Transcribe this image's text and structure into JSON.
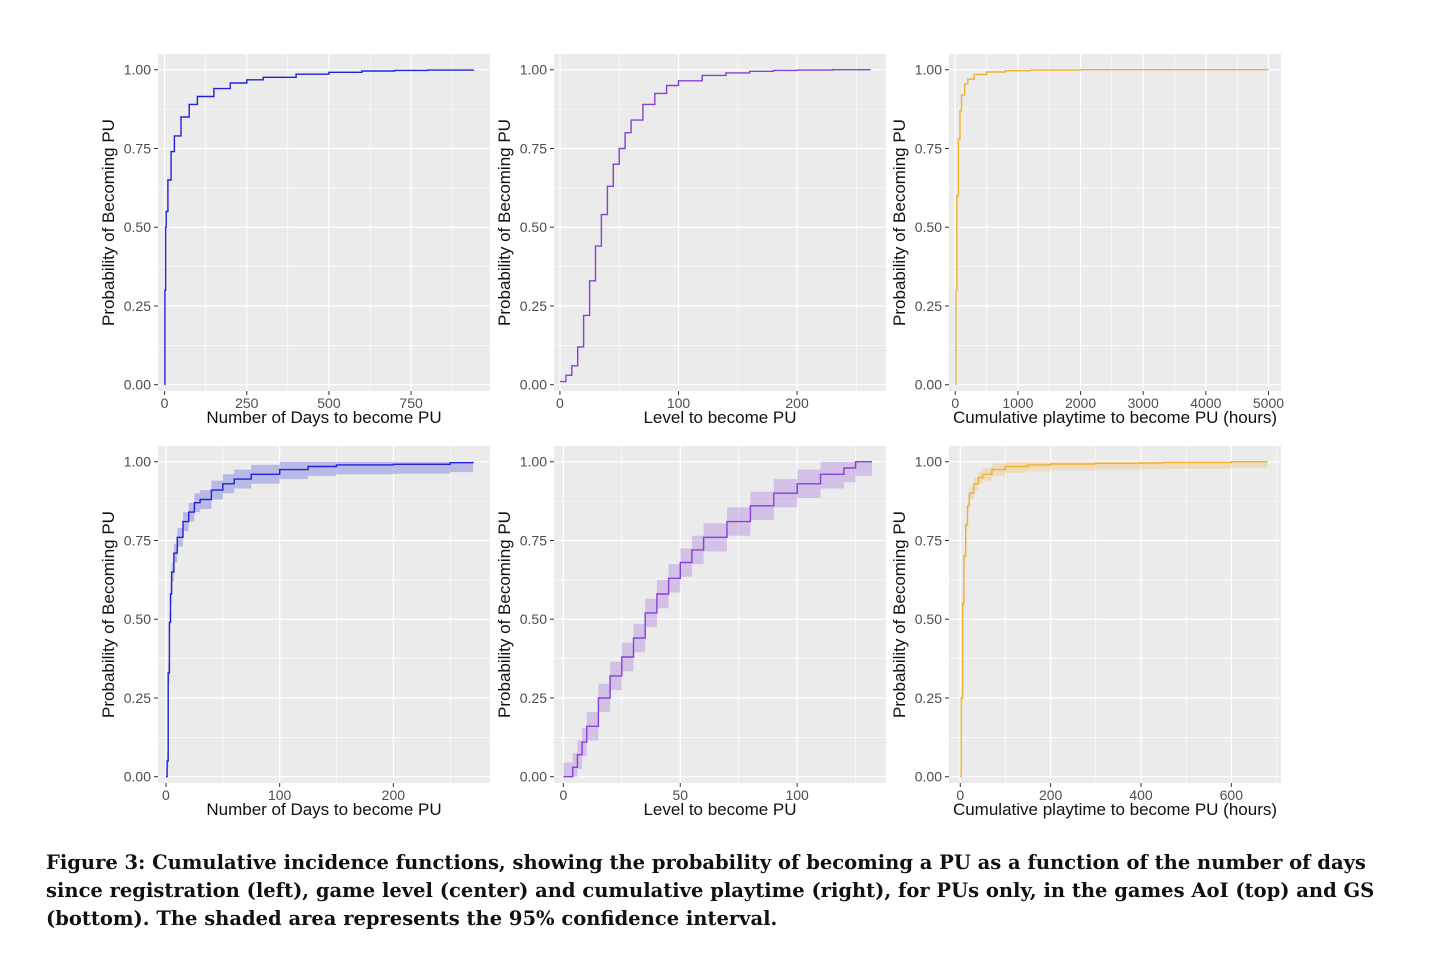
{
  "figure": {
    "caption": "Figure 3: Cumulative incidence functions, showing the probability of becoming a PU as a function of the number of days since registration (left), game level (center) and cumulative playtime (right), for PUs only, in the games AoI (top) and GS (bottom). The shaded area represents the 95% confidence interval."
  },
  "colors": {
    "panel_bg": "#ebebeb",
    "grid": "#ffffff",
    "blue": "#2222d8",
    "purple": "#8a3fd6",
    "orange": "#f0b030"
  },
  "chart_data": [
    {
      "type": "line",
      "color": "#2222d8",
      "xlabel": "Number of Days to become PU",
      "ylabel": "Probability of Becoming PU",
      "xlim": [
        -20,
        990
      ],
      "ylim": [
        -0.02,
        1.05
      ],
      "xticks": [
        0,
        250,
        500,
        750
      ],
      "yticks": [
        0,
        0.25,
        0.5,
        0.75,
        1
      ],
      "yticklabels": [
        "0.00",
        "0.25",
        "0.50",
        "0.75",
        "1.00"
      ],
      "ci": false,
      "x": [
        0,
        1,
        3,
        5,
        10,
        20,
        30,
        50,
        75,
        100,
        150,
        200,
        250,
        300,
        400,
        500,
        600,
        700,
        800,
        940
      ],
      "y": [
        0,
        0.3,
        0.5,
        0.55,
        0.65,
        0.74,
        0.79,
        0.85,
        0.89,
        0.915,
        0.94,
        0.958,
        0.968,
        0.976,
        0.986,
        0.992,
        0.996,
        0.998,
        0.999,
        1.0
      ]
    },
    {
      "type": "line",
      "color": "#8a3fd6",
      "xlabel": "Level to become PU",
      "ylabel": "Probability of Becoming PU",
      "xlim": [
        -5,
        275
      ],
      "ylim": [
        -0.02,
        1.05
      ],
      "xticks": [
        0,
        100,
        200
      ],
      "yticks": [
        0,
        0.25,
        0.5,
        0.75,
        1
      ],
      "yticklabels": [
        "0.00",
        "0.25",
        "0.50",
        "0.75",
        "1.00"
      ],
      "ci": false,
      "x": [
        0,
        5,
        10,
        15,
        20,
        25,
        30,
        35,
        40,
        45,
        50,
        55,
        60,
        70,
        80,
        90,
        100,
        120,
        140,
        160,
        180,
        200,
        230,
        262
      ],
      "y": [
        0.01,
        0.03,
        0.06,
        0.12,
        0.22,
        0.33,
        0.44,
        0.54,
        0.63,
        0.7,
        0.75,
        0.8,
        0.84,
        0.89,
        0.925,
        0.95,
        0.965,
        0.982,
        0.99,
        0.995,
        0.998,
        0.999,
        1.0,
        1.0
      ]
    },
    {
      "type": "line",
      "color": "#f0b030",
      "xlabel": "Cumulative playtime to become PU (hours)",
      "ylabel": "Probability of Becoming PU",
      "xlim": [
        -100,
        5200
      ],
      "ylim": [
        -0.02,
        1.05
      ],
      "xticks": [
        0,
        1000,
        2000,
        3000,
        4000,
        5000
      ],
      "yticks": [
        0,
        0.25,
        0.5,
        0.75,
        1
      ],
      "yticklabels": [
        "0.00",
        "0.25",
        "0.50",
        "0.75",
        "1.00"
      ],
      "ci": false,
      "x": [
        0,
        10,
        25,
        50,
        75,
        100,
        150,
        200,
        300,
        500,
        800,
        1200,
        2000,
        3000,
        5000
      ],
      "y": [
        0,
        0.3,
        0.6,
        0.78,
        0.87,
        0.92,
        0.955,
        0.97,
        0.985,
        0.993,
        0.997,
        0.999,
        1.0,
        1.0,
        1.0
      ]
    },
    {
      "type": "line",
      "color": "#2222d8",
      "xlabel": "Number of Days to become PU",
      "ylabel": "Probability of Becoming PU",
      "xlim": [
        -7,
        285
      ],
      "ylim": [
        -0.02,
        1.05
      ],
      "xticks": [
        0,
        100,
        200
      ],
      "yticks": [
        0,
        0.25,
        0.5,
        0.75,
        1
      ],
      "yticklabels": [
        "0.00",
        "0.25",
        "0.50",
        "0.75",
        "1.00"
      ],
      "ci": true,
      "ci_halfwidth": 0.03,
      "x": [
        0,
        1,
        2,
        3,
        4,
        5,
        7,
        10,
        15,
        20,
        25,
        30,
        40,
        50,
        60,
        75,
        100,
        125,
        150,
        200,
        250,
        270
      ],
      "y": [
        0,
        0.05,
        0.33,
        0.49,
        0.58,
        0.65,
        0.71,
        0.76,
        0.81,
        0.84,
        0.87,
        0.88,
        0.91,
        0.93,
        0.945,
        0.96,
        0.975,
        0.985,
        0.99,
        0.992,
        0.997,
        1.0
      ]
    },
    {
      "type": "line",
      "color": "#8a3fd6",
      "xlabel": "Level to become PU",
      "ylabel": "Probability of Becoming PU",
      "xlim": [
        -4,
        138
      ],
      "ylim": [
        -0.02,
        1.05
      ],
      "xticks": [
        0,
        50,
        100
      ],
      "yticks": [
        0,
        0.25,
        0.5,
        0.75,
        1
      ],
      "yticklabels": [
        "0.00",
        "0.25",
        "0.50",
        "0.75",
        "1.00"
      ],
      "ci": true,
      "ci_halfwidth": 0.045,
      "x": [
        0,
        2,
        4,
        6,
        8,
        10,
        15,
        20,
        25,
        30,
        35,
        40,
        45,
        50,
        55,
        60,
        70,
        80,
        90,
        100,
        110,
        120,
        125,
        132
      ],
      "y": [
        0,
        0.0,
        0.03,
        0.07,
        0.11,
        0.16,
        0.25,
        0.32,
        0.38,
        0.44,
        0.52,
        0.58,
        0.63,
        0.68,
        0.72,
        0.76,
        0.81,
        0.86,
        0.9,
        0.93,
        0.96,
        0.98,
        1.0,
        1.0
      ]
    },
    {
      "type": "line",
      "color": "#f0b030",
      "xlabel": "Cumulative playtime to become PU (hours)",
      "ylabel": "Probability of Becoming PU",
      "xlim": [
        -25,
        710
      ],
      "ylim": [
        -0.02,
        1.05
      ],
      "xticks": [
        0,
        200,
        400,
        600
      ],
      "yticks": [
        0,
        0.25,
        0.5,
        0.75,
        1
      ],
      "yticklabels": [
        "0.00",
        "0.25",
        "0.50",
        "0.75",
        "1.00"
      ],
      "ci": true,
      "ci_halfwidth": 0.02,
      "x": [
        0,
        2,
        5,
        8,
        12,
        16,
        20,
        30,
        40,
        50,
        70,
        100,
        150,
        200,
        300,
        400,
        450,
        600,
        680
      ],
      "y": [
        0,
        0.25,
        0.55,
        0.7,
        0.8,
        0.86,
        0.9,
        0.93,
        0.95,
        0.96,
        0.975,
        0.985,
        0.99,
        0.993,
        0.995,
        0.996,
        0.998,
        1.0,
        1.0
      ]
    }
  ]
}
